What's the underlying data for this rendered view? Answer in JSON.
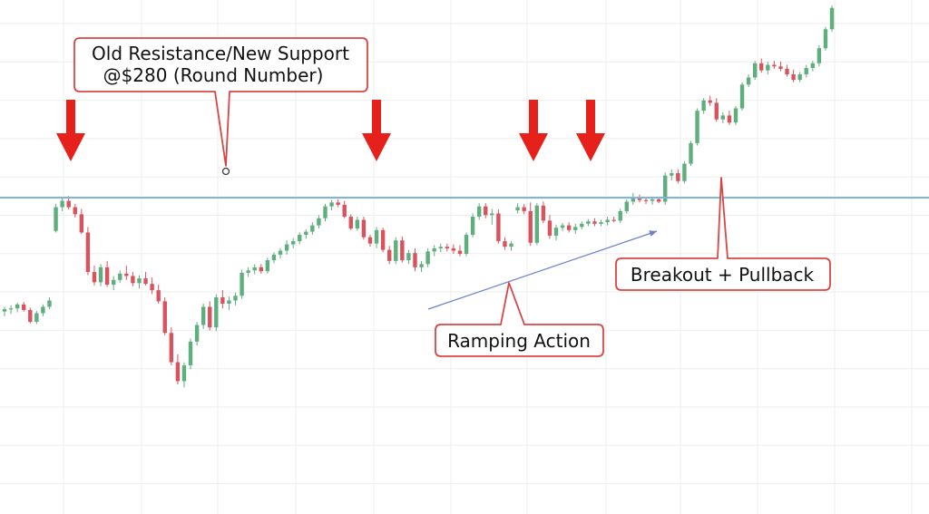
{
  "chart_data": {
    "type": "candlestick",
    "title": "",
    "xlabel": "",
    "ylabel": "",
    "ylim": [
      240,
      305
    ],
    "grid": true,
    "colors": {
      "up": "#5fae7e",
      "down": "#d9535f",
      "level": "#7fb6d6",
      "trend": "#6b7fcc",
      "arrow": "#e6211b",
      "callout_border": "#d94545"
    },
    "support_level": 280,
    "candles": [
      [
        265.6,
        266.2,
        265.0,
        265.9
      ],
      [
        265.9,
        266.4,
        265.3,
        266.0
      ],
      [
        266.0,
        266.7,
        265.5,
        266.5
      ],
      [
        266.5,
        266.8,
        265.6,
        265.8
      ],
      [
        265.8,
        266.1,
        264.1,
        264.3
      ],
      [
        264.3,
        265.7,
        264.0,
        265.4
      ],
      [
        265.4,
        266.5,
        265.0,
        266.2
      ],
      [
        266.2,
        267.4,
        265.9,
        267.0
      ],
      [
        275.8,
        279.2,
        275.6,
        278.8
      ],
      [
        278.8,
        280.0,
        278.3,
        279.6
      ],
      [
        279.6,
        280.2,
        278.5,
        278.8
      ],
      [
        278.8,
        279.2,
        277.5,
        277.9
      ],
      [
        277.9,
        278.6,
        275.4,
        275.6
      ],
      [
        275.6,
        276.3,
        270.2,
        270.6
      ],
      [
        270.6,
        271.4,
        268.9,
        269.3
      ],
      [
        269.3,
        271.6,
        268.8,
        271.2
      ],
      [
        271.2,
        272.0,
        268.7,
        269.0
      ],
      [
        269.0,
        270.1,
        268.3,
        269.6
      ],
      [
        269.6,
        270.8,
        269.2,
        270.4
      ],
      [
        270.4,
        271.4,
        269.6,
        270.1
      ],
      [
        270.1,
        270.6,
        268.8,
        269.2
      ],
      [
        269.2,
        270.2,
        268.5,
        269.8
      ],
      [
        269.8,
        270.6,
        268.9,
        269.1
      ],
      [
        269.1,
        269.9,
        267.8,
        268.3
      ],
      [
        268.3,
        269.0,
        266.6,
        266.9
      ],
      [
        266.9,
        267.4,
        262.6,
        262.9
      ],
      [
        262.9,
        263.6,
        258.8,
        259.2
      ],
      [
        259.2,
        260.2,
        256.4,
        256.8
      ],
      [
        256.8,
        259.2,
        256.0,
        258.8
      ],
      [
        258.8,
        262.2,
        258.3,
        261.8
      ],
      [
        261.8,
        264.3,
        261.3,
        263.9
      ],
      [
        263.9,
        266.6,
        263.4,
        266.2
      ],
      [
        266.2,
        266.9,
        263.2,
        263.6
      ],
      [
        263.6,
        267.8,
        263.1,
        267.4
      ],
      [
        267.4,
        268.3,
        266.0,
        266.6
      ],
      [
        266.6,
        267.5,
        265.8,
        267.0
      ],
      [
        267.0,
        268.0,
        266.4,
        267.6
      ],
      [
        267.6,
        270.9,
        267.2,
        270.5
      ],
      [
        270.5,
        271.2,
        270.0,
        270.8
      ],
      [
        270.8,
        271.6,
        270.3,
        271.2
      ],
      [
        271.2,
        271.6,
        270.4,
        270.7
      ],
      [
        270.7,
        272.4,
        270.4,
        272.1
      ],
      [
        272.1,
        273.1,
        271.7,
        272.8
      ],
      [
        272.8,
        273.6,
        272.3,
        273.3
      ],
      [
        273.3,
        274.6,
        272.8,
        274.1
      ],
      [
        274.1,
        274.9,
        273.6,
        274.5
      ],
      [
        274.5,
        275.6,
        274.1,
        275.3
      ],
      [
        275.3,
        276.0,
        274.8,
        275.7
      ],
      [
        275.7,
        276.9,
        275.3,
        276.5
      ],
      [
        276.5,
        277.8,
        276.1,
        277.4
      ],
      [
        277.4,
        279.2,
        277.0,
        278.9
      ],
      [
        278.9,
        279.7,
        278.4,
        279.4
      ],
      [
        279.4,
        279.8,
        278.8,
        279.1
      ],
      [
        279.1,
        279.6,
        277.4,
        277.6
      ],
      [
        277.6,
        277.9,
        275.9,
        276.1
      ],
      [
        276.1,
        277.6,
        275.8,
        277.2
      ],
      [
        277.2,
        277.6,
        274.7,
        275.0
      ],
      [
        275.0,
        275.3,
        273.8,
        274.2
      ],
      [
        274.2,
        276.3,
        273.6,
        275.9
      ],
      [
        275.9,
        276.2,
        273.1,
        273.4
      ],
      [
        273.4,
        273.9,
        271.6,
        272.0
      ],
      [
        272.0,
        275.0,
        271.6,
        274.6
      ],
      [
        274.6,
        275.1,
        271.8,
        272.1
      ],
      [
        272.1,
        273.4,
        271.6,
        273.0
      ],
      [
        273.0,
        273.6,
        270.7,
        271.2
      ],
      [
        271.2,
        272.0,
        270.6,
        271.6
      ],
      [
        271.6,
        273.6,
        271.2,
        273.2
      ],
      [
        273.2,
        274.0,
        272.6,
        273.6
      ],
      [
        273.6,
        274.2,
        273.1,
        273.8
      ],
      [
        273.8,
        274.2,
        273.2,
        273.6
      ],
      [
        273.6,
        274.1,
        272.9,
        273.3
      ],
      [
        273.3,
        274.0,
        272.6,
        272.9
      ],
      [
        272.9,
        275.6,
        272.6,
        275.3
      ],
      [
        275.3,
        278.0,
        275.0,
        277.6
      ],
      [
        277.6,
        279.3,
        277.2,
        278.9
      ],
      [
        278.9,
        279.3,
        277.4,
        277.8
      ],
      [
        277.8,
        278.6,
        276.6,
        278.0
      ],
      [
        278.0,
        278.5,
        274.2,
        274.5
      ],
      [
        274.5,
        275.0,
        273.4,
        273.8
      ],
      [
        273.8,
        274.5,
        273.3,
        274.2
      ],
      [
        278.4,
        279.3,
        278.0,
        278.8
      ],
      [
        278.8,
        279.2,
        277.9,
        278.3
      ],
      [
        278.3,
        279.4,
        273.9,
        274.3
      ],
      [
        274.3,
        279.3,
        274.0,
        279.0
      ],
      [
        279.0,
        279.5,
        276.8,
        277.1
      ],
      [
        277.1,
        277.8,
        274.8,
        275.2
      ],
      [
        275.2,
        276.6,
        274.6,
        276.2
      ],
      [
        276.2,
        276.8,
        275.8,
        276.5
      ],
      [
        276.5,
        276.9,
        275.6,
        275.9
      ],
      [
        275.9,
        276.7,
        275.4,
        276.3
      ],
      [
        276.3,
        277.0,
        276.0,
        276.7
      ],
      [
        276.7,
        277.3,
        276.4,
        277.0
      ],
      [
        277.0,
        277.4,
        276.4,
        276.7
      ],
      [
        276.7,
        277.2,
        276.4,
        276.9
      ],
      [
        276.9,
        277.6,
        276.5,
        277.2
      ],
      [
        277.2,
        277.6,
        276.9,
        277.1
      ],
      [
        277.1,
        278.6,
        276.8,
        278.3
      ],
      [
        278.3,
        279.8,
        278.0,
        279.5
      ],
      [
        279.5,
        280.6,
        279.1,
        280.0
      ],
      [
        280.0,
        280.4,
        279.4,
        279.7
      ],
      [
        279.7,
        280.0,
        279.2,
        279.6
      ],
      [
        279.6,
        280.0,
        279.1,
        279.8
      ],
      [
        279.8,
        280.1,
        279.3,
        279.5
      ],
      [
        279.5,
        283.2,
        279.1,
        282.8
      ],
      [
        282.8,
        283.6,
        282.2,
        283.1
      ],
      [
        283.1,
        283.6,
        281.8,
        282.1
      ],
      [
        282.1,
        284.6,
        281.8,
        284.3
      ],
      [
        284.3,
        287.2,
        284.0,
        286.9
      ],
      [
        286.9,
        291.3,
        286.6,
        291.0
      ],
      [
        291.0,
        292.6,
        290.6,
        292.3
      ],
      [
        292.3,
        292.9,
        291.6,
        292.0
      ],
      [
        292.0,
        292.6,
        289.6,
        289.9
      ],
      [
        289.9,
        290.8,
        289.4,
        290.4
      ],
      [
        290.4,
        291.0,
        289.2,
        289.5
      ],
      [
        289.5,
        291.6,
        289.2,
        291.3
      ],
      [
        291.3,
        294.6,
        291.0,
        294.3
      ],
      [
        294.3,
        295.6,
        294.0,
        295.2
      ],
      [
        295.2,
        297.3,
        294.9,
        297.0
      ],
      [
        297.0,
        297.6,
        295.8,
        296.1
      ],
      [
        296.1,
        297.2,
        295.6,
        296.8
      ],
      [
        296.8,
        297.3,
        296.3,
        296.6
      ],
      [
        296.6,
        297.2,
        296.0,
        296.3
      ],
      [
        296.3,
        296.8,
        295.3,
        295.6
      ],
      [
        295.6,
        296.2,
        294.6,
        294.9
      ],
      [
        294.9,
        295.9,
        294.6,
        295.6
      ],
      [
        295.6,
        296.8,
        295.2,
        296.4
      ],
      [
        296.4,
        297.3,
        296.0,
        297.0
      ],
      [
        297.0,
        299.3,
        296.6,
        298.9
      ],
      [
        298.9,
        301.6,
        298.6,
        301.3
      ],
      [
        301.3,
        304.3,
        301.0,
        304.0
      ]
    ],
    "annotations": [
      {
        "lines": [
          "Old Resistance/New Support",
          "@$280 (Round Number)"
        ]
      },
      {
        "lines": [
          "Ramping Action"
        ]
      },
      {
        "lines": [
          "Breakout + Pullback"
        ]
      }
    ]
  }
}
